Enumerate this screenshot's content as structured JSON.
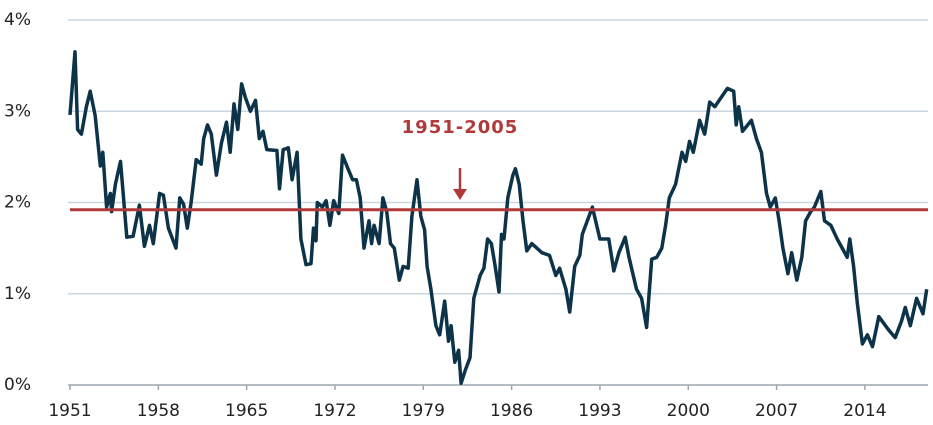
{
  "chart_data": {
    "type": "line",
    "x": [
      1951.0,
      1951.4,
      1951.6,
      1951.9,
      1952.3,
      1952.6,
      1953.0,
      1953.4,
      1953.6,
      1953.9,
      1954.2,
      1954.3,
      1954.6,
      1955.0,
      1955.5,
      1956.0,
      1956.5,
      1956.9,
      1957.3,
      1957.6,
      1958.1,
      1958.4,
      1958.8,
      1959.4,
      1959.7,
      1960.0,
      1960.3,
      1960.6,
      1961.0,
      1961.4,
      1961.6,
      1961.9,
      1962.2,
      1962.6,
      1963.0,
      1963.4,
      1963.7,
      1964.0,
      1964.3,
      1964.6,
      1964.9,
      1965.3,
      1965.7,
      1966.0,
      1966.3,
      1966.6,
      1967.4,
      1967.6,
      1967.9,
      1968.3,
      1968.6,
      1969.0,
      1969.3,
      1969.7,
      1970.1,
      1970.3,
      1970.5,
      1970.6,
      1971.0,
      1971.3,
      1971.6,
      1971.9,
      1972.3,
      1972.6,
      1973.0,
      1973.4,
      1973.7,
      1974.0,
      1974.3,
      1974.7,
      1974.9,
      1975.1,
      1975.5,
      1975.8,
      1976.1,
      1976.4,
      1976.7,
      1977.1,
      1977.4,
      1977.8,
      1978.1,
      1978.5,
      1978.8,
      1979.1,
      1979.3,
      1979.6,
      1980.0,
      1980.3,
      1980.7,
      1981.0,
      1981.2,
      1981.5,
      1981.8,
      1982.0,
      1982.3,
      1982.7,
      1983.0,
      1983.5,
      1983.8,
      1984.1,
      1984.4,
      1984.7,
      1985.0,
      1985.2,
      1985.4,
      1985.7,
      1986.1,
      1986.3,
      1986.6,
      1986.9,
      1987.2,
      1987.6,
      1988.4,
      1989.0,
      1989.5,
      1989.8,
      1990.3,
      1990.6,
      1991.0,
      1991.4,
      1991.6,
      1992.0,
      1992.4,
      1993.0,
      1993.7,
      1994.1,
      1994.5,
      1995.0,
      1995.3,
      1995.9,
      1996.3,
      1996.7,
      1997.1,
      1997.5,
      1997.9,
      1998.2,
      1998.5,
      1999.0,
      1999.5,
      1999.8,
      2000.1,
      2000.4,
      2000.9,
      2001.3,
      2001.7,
      2002.1,
      2003.1,
      2003.6,
      2003.8,
      2004.0,
      2004.3,
      2005.0,
      2005.4,
      2005.8,
      2006.2,
      2006.5,
      2006.9,
      2007.2,
      2007.5,
      2007.9,
      2008.2,
      2008.6,
      2009.0,
      2009.3,
      2009.7,
      2010.0,
      2010.5,
      2010.8,
      2011.3,
      2011.8,
      2012.2,
      2012.6,
      2012.8,
      2013.1,
      2013.4,
      2013.8,
      2014.2,
      2014.6,
      2015.1,
      2015.9,
      2016.4,
      2016.9,
      2017.2,
      2017.6,
      2018.1,
      2018.6,
      2018.9
    ],
    "series": [
      {
        "color": "#0d3349",
        "values": [
          2.96,
          3.65,
          2.8,
          2.75,
          3.05,
          3.22,
          2.95,
          2.4,
          2.55,
          1.95,
          2.1,
          1.9,
          2.2,
          2.45,
          1.62,
          1.63,
          1.97,
          1.52,
          1.75,
          1.55,
          2.1,
          2.08,
          1.72,
          1.5,
          2.05,
          1.98,
          1.72,
          2.0,
          2.47,
          2.42,
          2.7,
          2.85,
          2.75,
          2.3,
          2.65,
          2.88,
          2.55,
          3.08,
          2.8,
          3.3,
          3.15,
          3.0,
          3.12,
          2.7,
          2.78,
          2.58,
          2.57,
          2.15,
          2.58,
          2.6,
          2.25,
          2.55,
          1.6,
          1.32,
          1.33,
          1.72,
          1.58,
          2.0,
          1.95,
          2.02,
          1.75,
          2.02,
          1.88,
          2.52,
          2.38,
          2.25,
          2.25,
          2.05,
          1.5,
          1.8,
          1.55,
          1.75,
          1.55,
          2.05,
          1.9,
          1.55,
          1.5,
          1.15,
          1.3,
          1.28,
          1.85,
          2.25,
          1.85,
          1.7,
          1.3,
          1.05,
          0.65,
          0.55,
          0.92,
          0.48,
          0.65,
          0.25,
          0.38,
          0.02,
          0.15,
          0.3,
          0.95,
          1.2,
          1.28,
          1.6,
          1.55,
          1.3,
          1.02,
          1.65,
          1.6,
          2.05,
          2.3,
          2.37,
          2.2,
          1.8,
          1.47,
          1.55,
          1.45,
          1.42,
          1.2,
          1.28,
          1.05,
          0.8,
          1.3,
          1.42,
          1.65,
          1.8,
          1.95,
          1.6,
          1.6,
          1.25,
          1.45,
          1.62,
          1.4,
          1.05,
          0.95,
          0.63,
          1.38,
          1.4,
          1.5,
          1.75,
          2.05,
          2.2,
          2.55,
          2.45,
          2.67,
          2.55,
          2.9,
          2.75,
          3.1,
          3.05,
          3.25,
          3.22,
          2.85,
          3.05,
          2.78,
          2.9,
          2.7,
          2.55,
          2.1,
          1.95,
          2.05,
          1.8,
          1.5,
          1.22,
          1.45,
          1.15,
          1.4,
          1.8,
          1.9,
          1.95,
          2.12,
          1.8,
          1.75,
          1.6,
          1.5,
          1.4,
          1.6,
          1.3,
          0.9,
          0.45,
          0.55,
          0.42,
          0.75,
          0.6,
          0.52,
          0.7,
          0.85,
          0.65,
          0.95,
          0.78,
          1.05
        ]
      }
    ],
    "xlim": [
      1951,
      2019
    ],
    "xticks": [
      1951,
      1958,
      1965,
      1972,
      1979,
      1986,
      1993,
      2000,
      2007,
      2014
    ],
    "ylim": [
      0,
      4
    ],
    "yticks": [
      {
        "value": 0,
        "label": "0%"
      },
      {
        "value": 1,
        "label": "1%"
      },
      {
        "value": 2,
        "label": "2%"
      },
      {
        "value": 3,
        "label": "3%"
      },
      {
        "value": 4,
        "label": "4%"
      }
    ],
    "grid": true,
    "reference_line": {
      "value": 1.92,
      "label": "1951-2005",
      "color": "#b03a3a"
    }
  }
}
